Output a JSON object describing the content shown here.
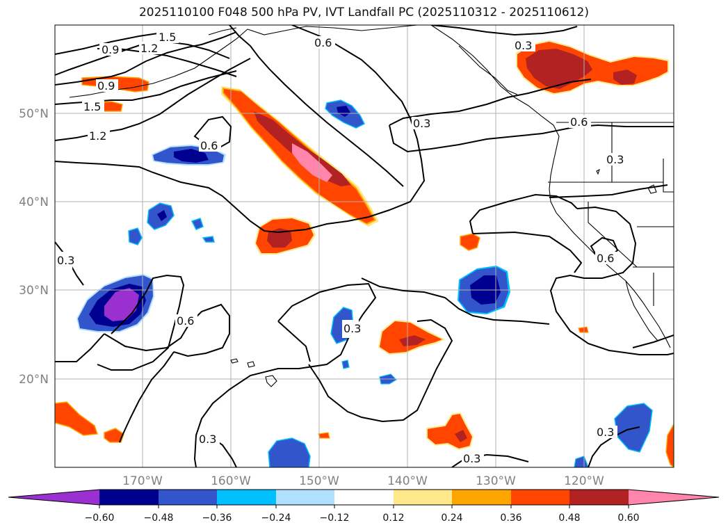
{
  "title": "2025110100 F048 500 hPa PV, IVT Landfall PC (2025110312 - 2025110612)",
  "colors": {
    "neg_extreme": "#9b30d0",
    "neg_060": "#000090",
    "neg_048": "#3355cc",
    "neg_036": "#00bfff",
    "neg_024": "#b0e0ff",
    "neutral": "#ffffff",
    "pos_012": "#ffe88a",
    "pos_024": "#ffa500",
    "pos_036": "#ff4500",
    "pos_048": "#b22222",
    "pos_extreme": "#ff85aa",
    "contour": "#000000",
    "grid": "#b0b0b0",
    "coast": "#000000"
  },
  "map": {
    "lat_labels": [
      "50°N",
      "40°N",
      "30°N",
      "20°N"
    ],
    "lon_labels": [
      "170°W",
      "160°W",
      "150°W",
      "140°W",
      "130°W",
      "120°W"
    ],
    "contour_labels": [
      "1.5",
      "1.2",
      "0.9",
      "0.9",
      "1.5",
      "1.2",
      "0.6",
      "0.6",
      "0.3",
      "0.6",
      "0.3",
      "0.3",
      "0.6",
      "0.3",
      "0.6",
      "0.3",
      "0.3",
      "0.3",
      "0.3"
    ]
  },
  "colorbar": {
    "tick_labels": [
      "−0.60",
      "−0.48",
      "−0.36",
      "−0.24",
      "−0.12",
      "0.12",
      "0.24",
      "0.36",
      "0.48",
      "0.60"
    ]
  }
}
